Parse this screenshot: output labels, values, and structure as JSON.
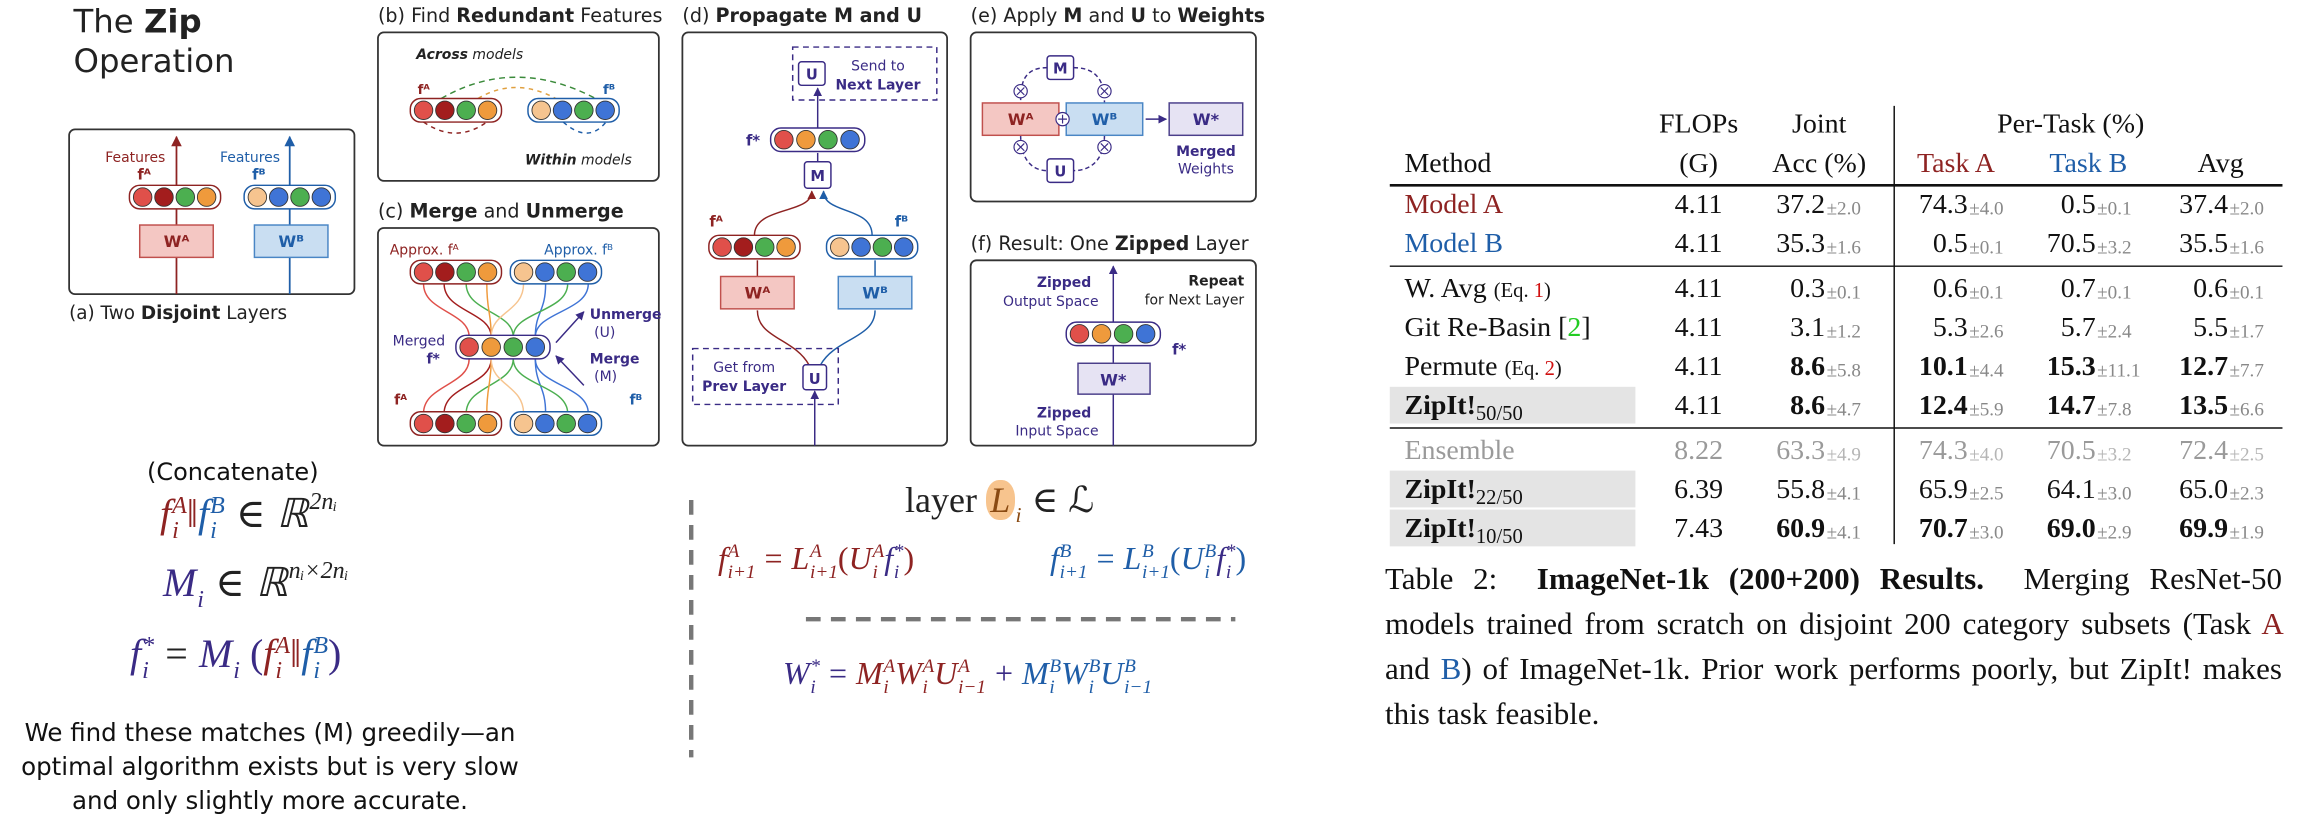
{
  "title": {
    "line1": [
      "The ",
      "Zip"
    ],
    "line2": "Operation"
  },
  "colors": {
    "a": "#8e2322",
    "b": "#1f5ea8",
    "m": "#3a2b85",
    "l": "#8a4a12",
    "text": "#222"
  },
  "panels": {
    "a": {
      "title": [
        "(a) Two ",
        "Disjoint",
        " Layers"
      ],
      "features_a": "Features",
      "features_b": "Features",
      "f_a": "fᴬ",
      "f_b": "fᴮ",
      "w_a": "Wᴬ",
      "w_b": "Wᴮ"
    },
    "b": {
      "title": [
        "(b) Find ",
        "Redundant",
        " Features"
      ],
      "across": [
        "Across",
        " models"
      ],
      "within": [
        "Within",
        " models"
      ],
      "f_a": "fᴬ",
      "f_b": "fᴮ"
    },
    "c": {
      "title": [
        "(c) ",
        "Merge",
        " and ",
        "Unmerge"
      ],
      "approx_a": "Approx. fᴬ",
      "approx_b": "Approx. fᴮ",
      "merged": "Merged",
      "f_star": "f*",
      "unmerge": "Unmerge",
      "unmerge_sym": "(U)",
      "merge": "Merge",
      "merge_sym": "(M)",
      "f_a": "fᴬ",
      "f_b": "fᴮ"
    },
    "d": {
      "title": [
        "(d) ",
        "Propagate M and U"
      ],
      "u_top": "U",
      "send": "Send to",
      "next_layer": "Next Layer",
      "f_star": "f*",
      "m": "M",
      "f_a": "fᴬ",
      "f_b": "fᴮ",
      "w_a": "Wᴬ",
      "w_b": "Wᴮ",
      "get": "Get from",
      "prev_layer": "Prev Layer",
      "u_bottom": "U"
    },
    "e": {
      "title": [
        "(e) Apply ",
        "M",
        " and ",
        "U",
        " to ",
        "Weights"
      ],
      "m": "M",
      "u": "U",
      "w_a": "Wᴬ",
      "w_b": "Wᴮ",
      "w_star": "W*",
      "merged": "Merged",
      "weights": "Weights"
    },
    "f": {
      "title": [
        "(f) Result: One ",
        "Zipped",
        " Layer"
      ],
      "zipped_out": "Zipped",
      "output_space": "Output Space",
      "repeat": "Repeat",
      "for_next": "for Next Layer",
      "f_star": "f*",
      "w_star": "W*",
      "zipped_in": "Zipped",
      "input_space": "Input Space"
    }
  },
  "concatenate": "(Concatenate)",
  "equations": {
    "e1": [
      {
        "b": "f",
        "sup": "A",
        "sub": "i",
        "c": "a"
      },
      {
        "t": "‖",
        "c": "a"
      },
      {
        "b": "f",
        "sup": "B",
        "sub": "i",
        "c": "b"
      },
      {
        "op": "∈"
      },
      {
        "b": "ℝ",
        "sup": "2nᵢ"
      }
    ],
    "e2": [
      {
        "b": "M",
        "sub": "i",
        "c": "m"
      },
      {
        "op": "∈"
      },
      {
        "b": "ℝ",
        "sup": "nᵢ×2nᵢ"
      }
    ],
    "e3": [
      {
        "b": "f",
        "sup": "*",
        "sub": "i",
        "c": "m"
      },
      {
        "op": "="
      },
      {
        "b": "M",
        "sub": "i",
        "c": "m"
      },
      {
        "t": " (",
        "c": "m"
      },
      {
        "b": "f",
        "sup": "A",
        "sub": "i",
        "c": "a"
      },
      {
        "t": "‖",
        "c": "a"
      },
      {
        "b": "f",
        "sup": "B",
        "sub": "i",
        "c": "b"
      },
      {
        "t": ")",
        "c": "m"
      }
    ],
    "layer": [
      {
        "t": "layer "
      },
      {
        "b": "L",
        "sub": "i",
        "c": "l",
        "hl": true
      },
      {
        "op": "∈"
      },
      {
        "t": "ℒ"
      }
    ],
    "e5": [
      {
        "b": "f",
        "sup": "A",
        "sub": "i+1",
        "c": "a"
      },
      {
        "op": "=",
        "c": "a"
      },
      {
        "b": "L",
        "sup": "A",
        "sub": "i+1",
        "c": "a"
      },
      {
        "t": "(",
        "c": "a"
      },
      {
        "b": "U",
        "sup": "A",
        "sub": "i",
        "c": "a"
      },
      {
        "b": "f",
        "sup": "*",
        "sub": "i",
        "c": "m"
      },
      {
        "t": ")",
        "c": "a"
      }
    ],
    "e6": [
      {
        "b": "f",
        "sup": "B",
        "sub": "i+1",
        "c": "b"
      },
      {
        "op": "=",
        "c": "b"
      },
      {
        "b": "L",
        "sup": "B",
        "sub": "i+1",
        "c": "b"
      },
      {
        "t": "(",
        "c": "b"
      },
      {
        "b": "U",
        "sup": "B",
        "sub": "i",
        "c": "b"
      },
      {
        "b": "f",
        "sup": "*",
        "sub": "i",
        "c": "m"
      },
      {
        "t": ")",
        "c": "b"
      }
    ],
    "e7": [
      {
        "b": "W",
        "sup": "*",
        "sub": "i",
        "c": "m"
      },
      {
        "op": "=",
        "c": "m"
      },
      {
        "b": "M",
        "sup": "A",
        "sub": "i",
        "c": "a"
      },
      {
        "b": "W",
        "sup": "A",
        "sub": "i",
        "c": "a"
      },
      {
        "b": "U",
        "sup": "A",
        "sub": "i−1",
        "c": "a"
      },
      {
        "op": "+",
        "c": "m"
      },
      {
        "b": "M",
        "sup": "B",
        "sub": "i",
        "c": "b"
      },
      {
        "b": "W",
        "sup": "B",
        "sub": "i",
        "c": "b"
      },
      {
        "b": "U",
        "sup": "B",
        "sub": "i−1",
        "c": "b"
      }
    ]
  },
  "note": "We find these matches (M) greedily—an optimal algorithm exists but is very slow and only slightly more accurate.",
  "table": {
    "header_top": {
      "flops": "FLOPs",
      "joint": "Joint",
      "per_task": "Per-Task (%)"
    },
    "header": {
      "method": "Method",
      "flops": "(G)",
      "acc": "Acc (%)",
      "task_a": "Task A",
      "task_b": "Task B",
      "avg": "Avg"
    },
    "rows": [
      {
        "method": [
          {
            "t": "Model A"
          }
        ],
        "method_color": "#8e2322",
        "flops": "4.11",
        "cells": [
          {
            "v": "37.2",
            "pm": "±2.0"
          },
          {
            "v": "74.3",
            "pm": "±4.0"
          },
          {
            "v": "0.5",
            "pm": "±0.1"
          },
          {
            "v": "37.4",
            "pm": "±2.0"
          }
        ]
      },
      {
        "method": [
          {
            "t": "Model B"
          }
        ],
        "method_color": "#1f5ea8",
        "flops": "4.11",
        "cells": [
          {
            "v": "35.3",
            "pm": "±1.6"
          },
          {
            "v": "0.5",
            "pm": "±0.1"
          },
          {
            "v": "70.5",
            "pm": "±3.2"
          },
          {
            "v": "35.5",
            "pm": "±1.6"
          }
        ]
      },
      {
        "rule_before": true,
        "method": [
          {
            "t": "W. Avg "
          },
          {
            "t": "(Eq. ",
            "small": true
          },
          {
            "t": "1",
            "small": true,
            "color": "#d01010"
          },
          {
            "t": ")",
            "small": true
          }
        ],
        "flops": "4.11",
        "cells": [
          {
            "v": "0.3",
            "pm": "±0.1"
          },
          {
            "v": "0.6",
            "pm": "±0.1"
          },
          {
            "v": "0.7",
            "pm": "±0.1"
          },
          {
            "v": "0.6",
            "pm": "±0.1"
          }
        ]
      },
      {
        "method": [
          {
            "t": "Git Re-Basin ["
          },
          {
            "t": "2",
            "color": "#22cc22"
          },
          {
            "t": "]"
          }
        ],
        "flops": "4.11",
        "cells": [
          {
            "v": "3.1",
            "pm": "±1.2"
          },
          {
            "v": "5.3",
            "pm": "±2.6"
          },
          {
            "v": "5.7",
            "pm": "±2.4"
          },
          {
            "v": "5.5",
            "pm": "±1.7"
          }
        ]
      },
      {
        "method": [
          {
            "t": "Permute "
          },
          {
            "t": "(Eq. ",
            "small": true
          },
          {
            "t": "2",
            "small": true,
            "color": "#d01010"
          },
          {
            "t": ")",
            "small": true
          }
        ],
        "flops": "4.11",
        "cells": [
          {
            "v": "8.6",
            "pm": "±5.8",
            "bold": true
          },
          {
            "v": "10.1",
            "pm": "±4.4",
            "bold": true
          },
          {
            "v": "15.3",
            "pm": "±11.1",
            "bold": true
          },
          {
            "v": "12.7",
            "pm": "±7.7",
            "bold": true
          }
        ]
      },
      {
        "shade": true,
        "method": [
          {
            "t": "ZipIt!",
            "bold": true
          },
          {
            "t": "50/50",
            "sub": true
          }
        ],
        "flops": "4.11",
        "cells": [
          {
            "v": "8.6",
            "pm": "±4.7",
            "bold": true
          },
          {
            "v": "12.4",
            "pm": "±5.9",
            "bold": true
          },
          {
            "v": "14.7",
            "pm": "±7.8",
            "bold": true
          },
          {
            "v": "13.5",
            "pm": "±6.6",
            "bold": true
          }
        ]
      },
      {
        "rule_before": true,
        "text_color": "#9a9a9a",
        "method": [
          {
            "t": "Ensemble"
          }
        ],
        "flops": "8.22",
        "cells": [
          {
            "v": "63.3",
            "pm": "±4.9"
          },
          {
            "v": "74.3",
            "pm": "±4.0"
          },
          {
            "v": "70.5",
            "pm": "±3.2"
          },
          {
            "v": "72.4",
            "pm": "±2.5"
          }
        ]
      },
      {
        "shade": true,
        "method": [
          {
            "t": "ZipIt!",
            "bold": true
          },
          {
            "t": "22/50",
            "sub": true
          }
        ],
        "flops": "6.39",
        "cells": [
          {
            "v": "55.8",
            "pm": "±4.1"
          },
          {
            "v": "65.9",
            "pm": "±2.5"
          },
          {
            "v": "64.1",
            "pm": "±3.0"
          },
          {
            "v": "65.0",
            "pm": "±2.3"
          }
        ]
      },
      {
        "shade": true,
        "method": [
          {
            "t": "ZipIt!",
            "bold": true
          },
          {
            "t": "10/50",
            "sub": true
          }
        ],
        "flops": "7.43",
        "cells": [
          {
            "v": "60.9",
            "pm": "±4.1",
            "bold": true
          },
          {
            "v": "70.7",
            "pm": "±3.0",
            "bold": true
          },
          {
            "v": "69.0",
            "pm": "±2.9",
            "bold": true
          },
          {
            "v": "69.9",
            "pm": "±1.9",
            "bold": true
          }
        ]
      }
    ]
  },
  "caption": {
    "label": "Table 2:",
    "bold": "ImageNet-1k (200+200) Results.",
    "text1": "Merging ResNet-50 models trained from scratch on disjoint 200 category subsets (Task",
    "a": "A",
    "and": "and",
    "b": "B",
    "text2": ") of ImageNet-1k. Prior work performs poorly, but ZipIt! makes this task feasible."
  }
}
